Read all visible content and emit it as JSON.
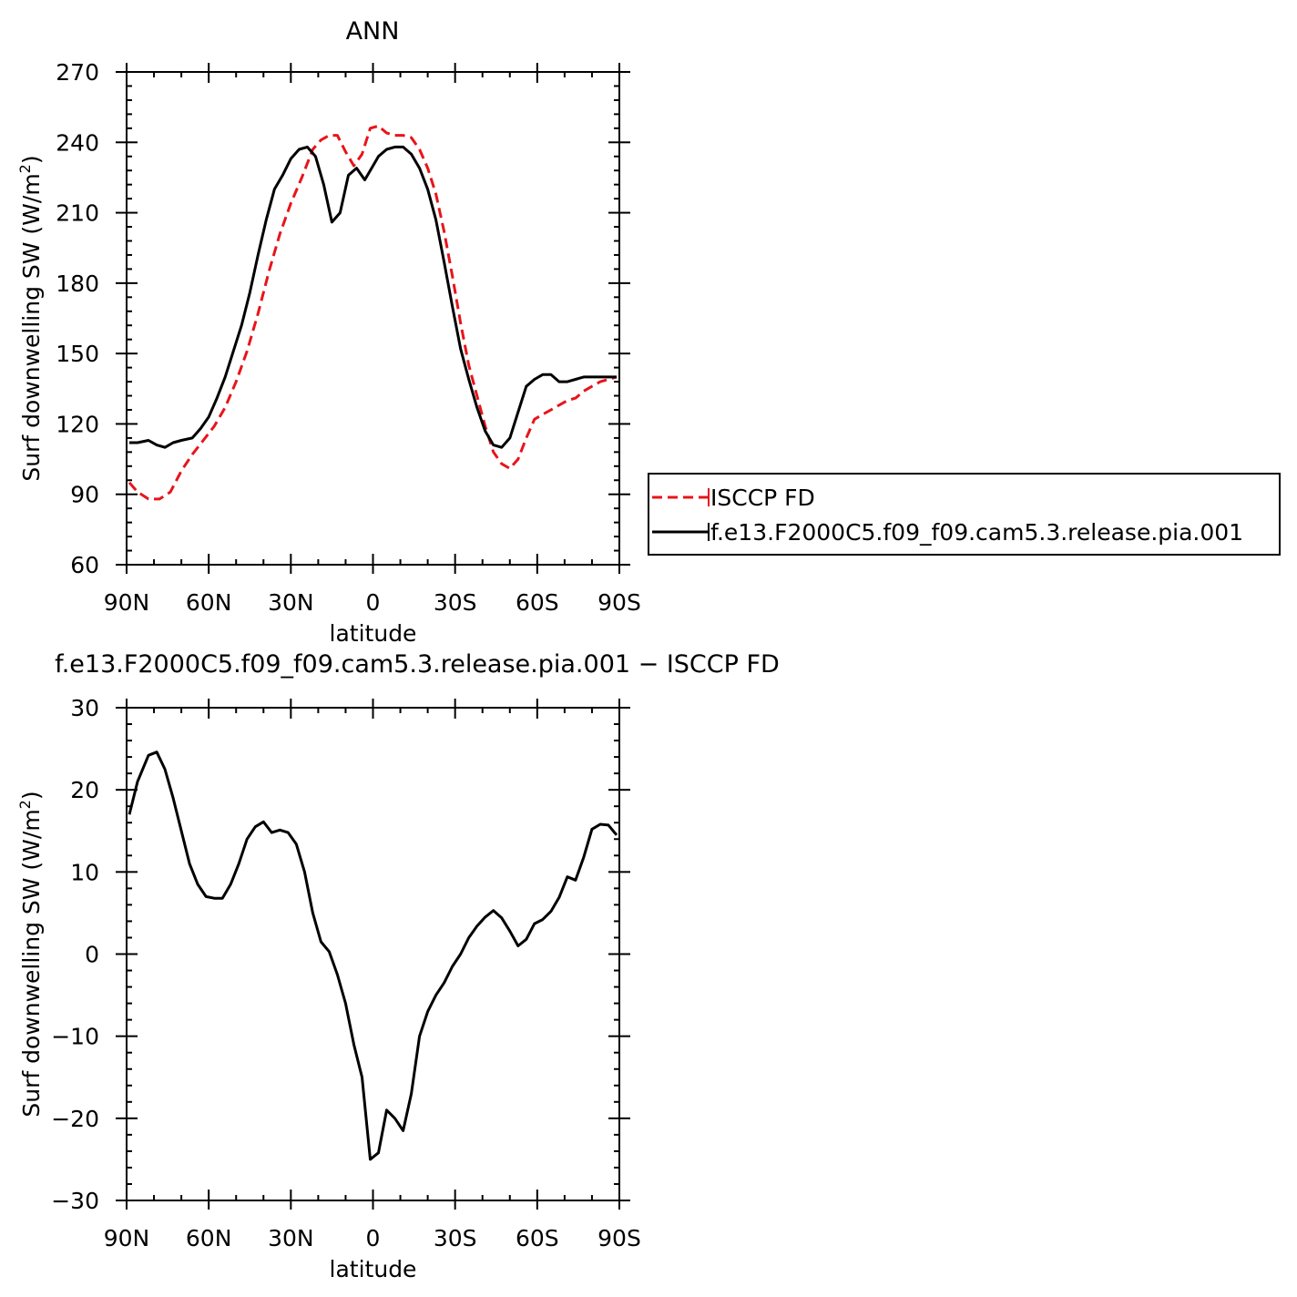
{
  "chart_data": [
    {
      "type": "line",
      "title": "ANN",
      "xlabel": "latitude",
      "ylabel": "Surf downwelling SW (W/m",
      "ylabel_sup": "2",
      "ylabel_close": ")",
      "xlim": [
        90,
        -90
      ],
      "ylim": [
        60,
        270
      ],
      "xticks": [
        {
          "value": 90,
          "label": "90N"
        },
        {
          "value": 60,
          "label": "60N"
        },
        {
          "value": 30,
          "label": "30N"
        },
        {
          "value": 0,
          "label": "0"
        },
        {
          "value": -30,
          "label": "30S"
        },
        {
          "value": -60,
          "label": "60S"
        },
        {
          "value": -90,
          "label": "90S"
        }
      ],
      "yticks": [
        60,
        90,
        120,
        150,
        180,
        210,
        240,
        270
      ],
      "legend_position": "right",
      "series": [
        {
          "name": "ISCCP FD",
          "color": "#e8141a",
          "dash": "dashed",
          "x": [
            89,
            86,
            82,
            78,
            74,
            70,
            66,
            62,
            58,
            54,
            50,
            46,
            42,
            38,
            34,
            30,
            26,
            22,
            19,
            16,
            13,
            10,
            7,
            4,
            1,
            -2,
            -5,
            -8,
            -11,
            -14,
            -17,
            -20,
            -23,
            -26,
            -29,
            -32,
            -35,
            -38,
            -41,
            -44,
            -47,
            -50,
            -53,
            -56,
            -59,
            -62,
            -65,
            -68,
            -71,
            -74,
            -77,
            -80,
            -83,
            -86,
            -89
          ],
          "y": [
            95,
            91,
            88,
            88,
            91,
            100,
            107,
            113,
            119,
            127,
            138,
            151,
            167,
            185,
            201,
            214,
            225,
            237,
            241,
            243,
            243,
            236,
            230,
            235,
            246,
            247,
            244,
            243,
            243,
            242,
            237,
            229,
            218,
            202,
            183,
            163,
            145,
            132,
            119,
            108,
            103,
            101,
            105,
            114,
            122,
            124,
            126,
            128,
            130,
            131,
            134,
            136,
            138,
            139,
            140
          ]
        },
        {
          "name": "f.e13.F2000C5.f09_f09.cam5.3.release.pia.001",
          "color": "#000000",
          "dash": "solid",
          "x": [
            89,
            86,
            82,
            79,
            76,
            73,
            70,
            66,
            63,
            60,
            57,
            54,
            51,
            48,
            45,
            42,
            39,
            36,
            33,
            30,
            27,
            24,
            21,
            18,
            15,
            12,
            9,
            6,
            3,
            1,
            -2,
            -5,
            -8,
            -11,
            -14,
            -17,
            -20,
            -23,
            -26,
            -29,
            -32,
            -35,
            -38,
            -41,
            -44,
            -47,
            -50,
            -53,
            -56,
            -59,
            -62,
            -65,
            -68,
            -71,
            -74,
            -77,
            -80,
            -83,
            -86,
            -89
          ],
          "y": [
            112,
            112,
            113,
            111,
            110,
            112,
            113,
            114,
            118,
            123,
            131,
            140,
            151,
            162,
            176,
            192,
            207,
            220,
            226,
            233,
            237,
            238,
            234,
            222,
            206,
            210,
            226,
            229,
            224,
            228,
            234,
            237,
            238,
            238,
            235,
            229,
            220,
            207,
            189,
            170,
            152,
            139,
            127,
            117,
            111,
            110,
            114,
            125,
            136,
            139,
            141,
            141,
            138,
            138,
            139,
            140,
            140,
            140,
            140,
            140
          ]
        }
      ]
    },
    {
      "type": "line",
      "title": "f.e13.F2000C5.f09_f09.cam5.3.release.pia.001 − ISCCP FD",
      "xlabel": "latitude",
      "ylabel": "Surf downwelling SW (W/m",
      "ylabel_sup": "2",
      "ylabel_close": ")",
      "xlim": [
        90,
        -90
      ],
      "ylim": [
        -30,
        30
      ],
      "xticks": [
        {
          "value": 90,
          "label": "90N"
        },
        {
          "value": 60,
          "label": "60N"
        },
        {
          "value": 30,
          "label": "30N"
        },
        {
          "value": 0,
          "label": "0"
        },
        {
          "value": -30,
          "label": "30S"
        },
        {
          "value": -60,
          "label": "60S"
        },
        {
          "value": -90,
          "label": "90S"
        }
      ],
      "yticks": [
        -30,
        -20,
        -10,
        0,
        10,
        20,
        30
      ],
      "series": [
        {
          "color": "#000000",
          "dash": "solid",
          "x": [
            89,
            86,
            82,
            79,
            76,
            73,
            70,
            67,
            64,
            61,
            58,
            55,
            52,
            49,
            46,
            43,
            40,
            37,
            34,
            31,
            28,
            25,
            22,
            19,
            16,
            13,
            10,
            7,
            4,
            1,
            -2,
            -5,
            -8,
            -11,
            -14,
            -17,
            -20,
            -23,
            -26,
            -29,
            -32,
            -35,
            -38,
            -41,
            -44,
            -47,
            -50,
            -53,
            -56,
            -59,
            -62,
            -65,
            -68,
            -71,
            -74,
            -77,
            -80,
            -83,
            -86,
            -89
          ],
          "y": [
            17,
            21,
            24.2,
            24.6,
            22.5,
            19,
            15,
            11,
            8.5,
            7,
            6.8,
            6.8,
            8.5,
            11,
            14,
            15.5,
            16.1,
            14.8,
            15.1,
            14.8,
            13.4,
            10,
            5,
            1.5,
            0.3,
            -2.5,
            -6,
            -11,
            -15,
            -25,
            -24.2,
            -19,
            -20,
            -21.5,
            -17,
            -10,
            -7,
            -5,
            -3.5,
            -1.5,
            0,
            2,
            3.4,
            4.5,
            5.3,
            4.4,
            2.8,
            1,
            1.8,
            3.7,
            4.2,
            5.2,
            6.9,
            9.4,
            9,
            11.8,
            15.2,
            15.8,
            15.7,
            14.5
          ]
        }
      ]
    }
  ]
}
